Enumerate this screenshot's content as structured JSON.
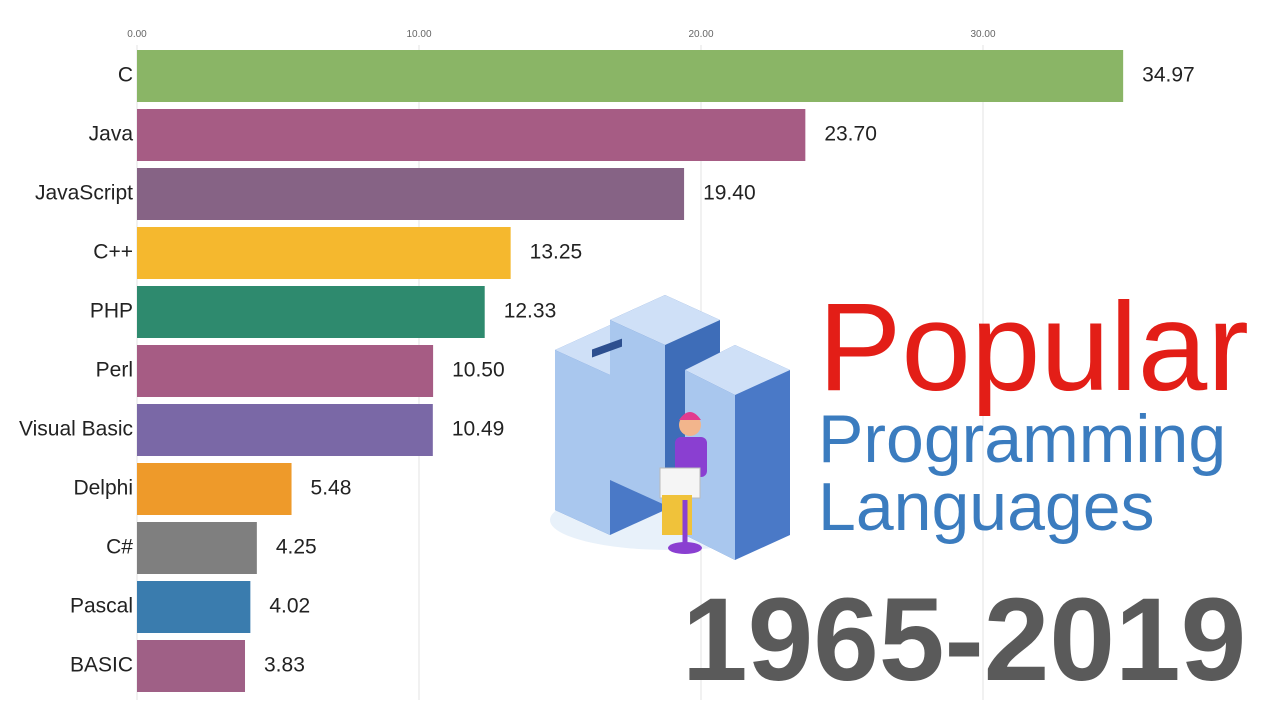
{
  "chart_data": {
    "type": "bar",
    "orientation": "horizontal",
    "categories": [
      "C",
      "Java",
      "JavaScript",
      "C++",
      "PHP",
      "Perl",
      "Visual Basic",
      "Delphi",
      "C#",
      "Pascal",
      "BASIC"
    ],
    "values": [
      34.97,
      23.7,
      19.4,
      13.25,
      12.33,
      10.5,
      10.49,
      5.48,
      4.25,
      4.02,
      3.83
    ],
    "value_labels": [
      "34.97",
      "23.70",
      "19.40",
      "13.25",
      "12.33",
      "10.50",
      "10.49",
      "5.48",
      "4.25",
      "4.02",
      "3.83"
    ],
    "colors": [
      "#8ab566",
      "#a65c84",
      "#866385",
      "#f5b82e",
      "#2e8a6e",
      "#a65c84",
      "#7a68a6",
      "#ee9a2a",
      "#7f7f7f",
      "#3a7cae",
      "#9f6086"
    ],
    "xlim": [
      0,
      40
    ],
    "xticks": [
      {
        "value": 0,
        "label": "0.00"
      },
      {
        "value": 10,
        "label": "10.00"
      },
      {
        "value": 20,
        "label": "20.00"
      },
      {
        "value": 30,
        "label": "30.00"
      }
    ],
    "grid": true,
    "annotations": [
      "Popular",
      "Programming",
      "Languages",
      "1965-2019"
    ]
  }
}
